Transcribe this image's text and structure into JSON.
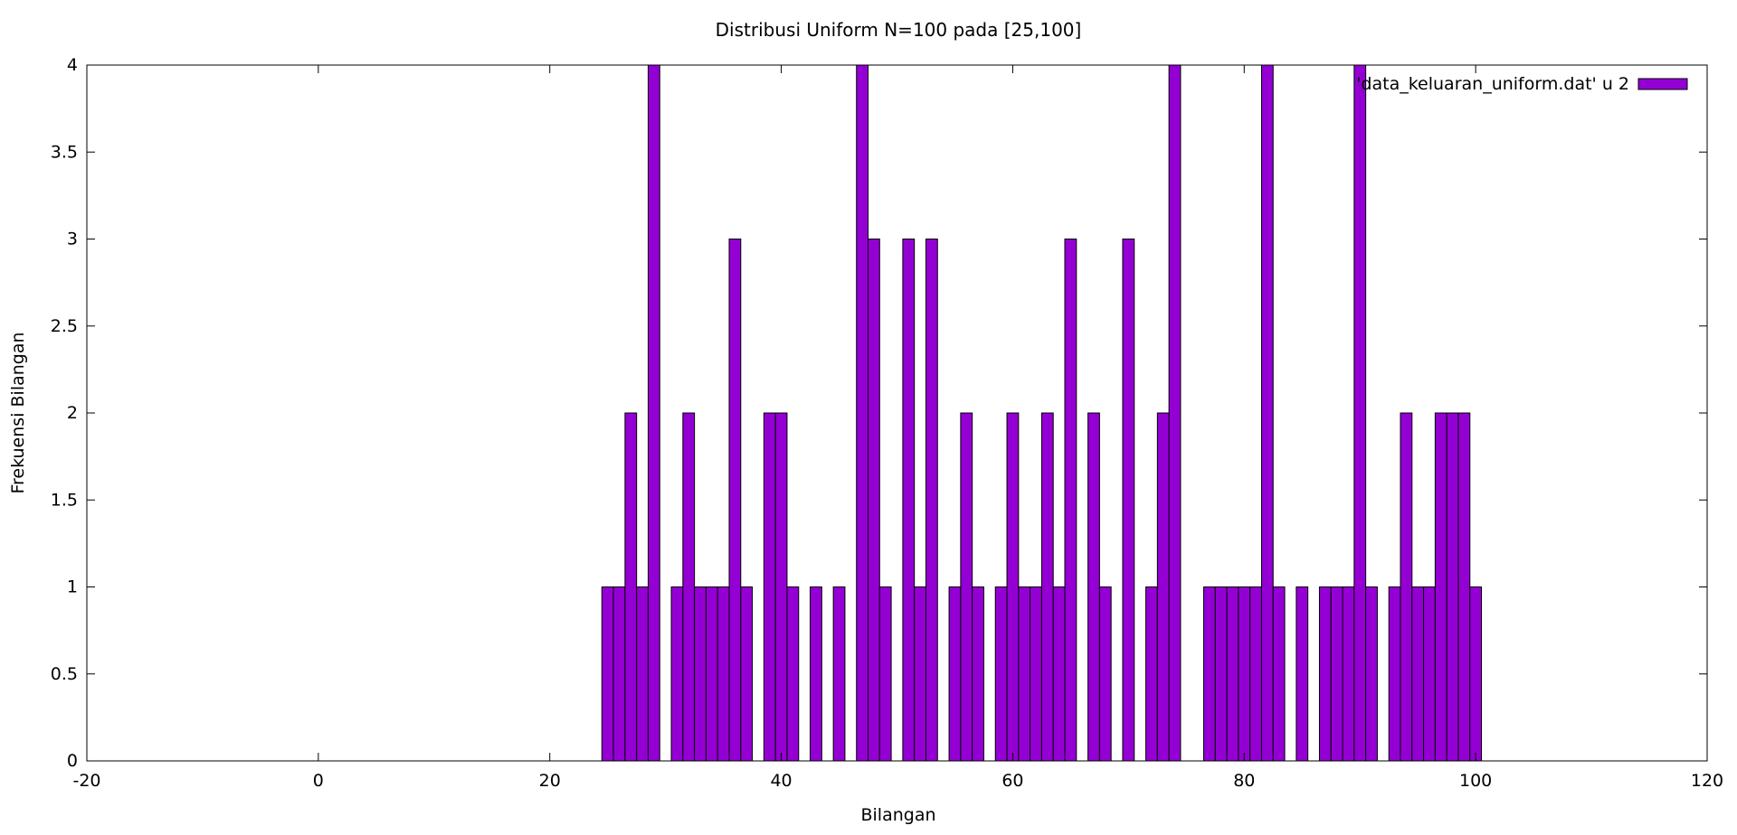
{
  "chart_data": {
    "type": "bar",
    "title": "Distribusi Uniform N=100 pada [25,100]",
    "xlabel": "Bilangan",
    "ylabel": "Frekuensi Bilangan",
    "xlim": [
      -20,
      120
    ],
    "ylim": [
      0,
      4
    ],
    "xticks": [
      -20,
      0,
      20,
      40,
      60,
      80,
      100,
      120
    ],
    "yticks": [
      0,
      0.5,
      1,
      1.5,
      2,
      2.5,
      3,
      3.5,
      4
    ],
    "xtick_labels": [
      "-20",
      "0",
      "20",
      "40",
      "60",
      "80",
      "100",
      "120"
    ],
    "ytick_labels": [
      "0",
      "0.5",
      "1",
      "1.5",
      "2",
      "2.5",
      "3",
      "3.5",
      "4"
    ],
    "grid": false,
    "legend_position": "top-right",
    "bar_color": "#9400D3",
    "series": [
      {
        "name": "'data_keluaran_uniform.dat' u 2",
        "x": [
          25,
          26,
          27,
          28,
          29,
          31,
          32,
          33,
          34,
          35,
          36,
          37,
          39,
          40,
          41,
          43,
          45,
          47,
          48,
          49,
          51,
          52,
          53,
          55,
          56,
          57,
          59,
          60,
          61,
          62,
          63,
          64,
          65,
          67,
          68,
          70,
          72,
          73,
          74,
          77,
          78,
          79,
          80,
          81,
          82,
          83,
          85,
          87,
          88,
          89,
          90,
          91,
          93,
          94,
          95,
          96,
          97,
          98,
          99,
          100
        ],
        "values": [
          1,
          1,
          2,
          1,
          4,
          1,
          2,
          1,
          1,
          1,
          3,
          1,
          2,
          2,
          1,
          1,
          1,
          4,
          3,
          1,
          3,
          1,
          3,
          1,
          2,
          1,
          1,
          2,
          1,
          1,
          2,
          1,
          3,
          2,
          1,
          3,
          1,
          2,
          4,
          1,
          1,
          1,
          1,
          1,
          4,
          1,
          1,
          1,
          1,
          1,
          4,
          1,
          1,
          2,
          1,
          1,
          2,
          2,
          2,
          1
        ]
      }
    ]
  }
}
